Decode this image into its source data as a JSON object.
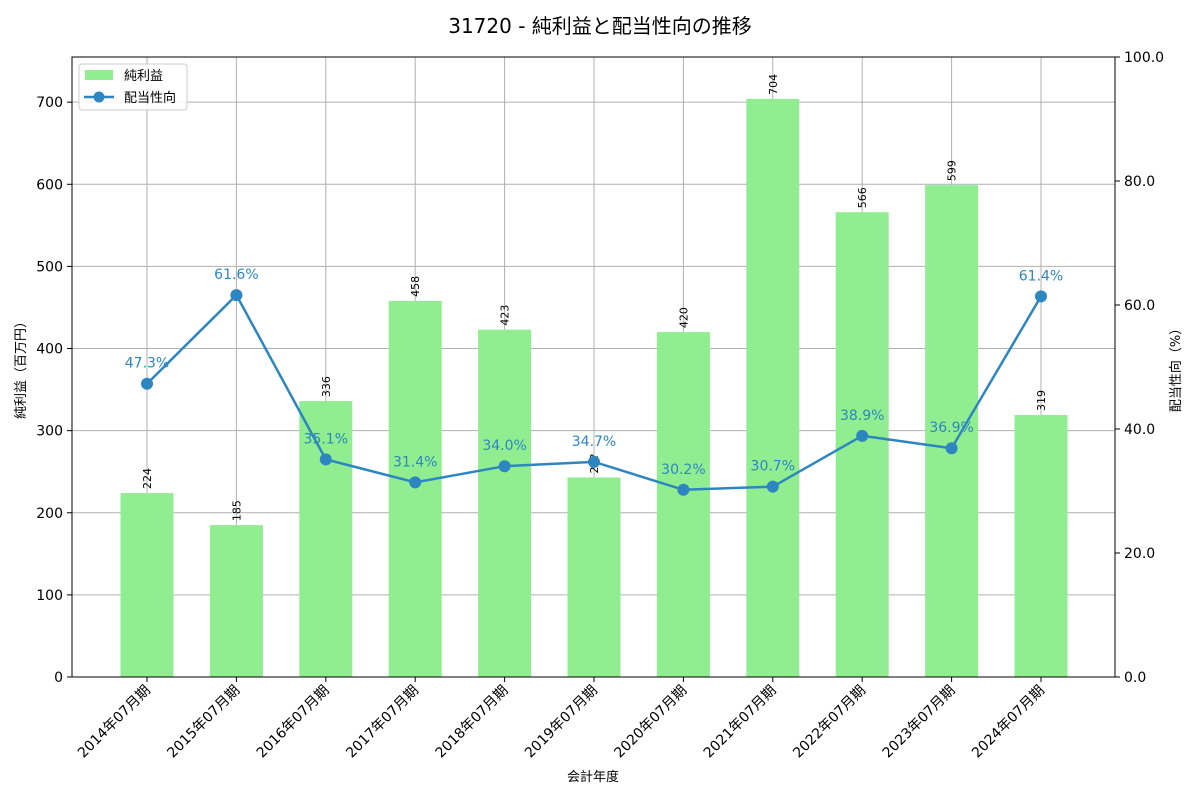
{
  "chart_data": {
    "type": "bar+line",
    "title": "31720 - 純利益と配当性向の推移",
    "xlabel": "会計年度",
    "ylabel_left": "純利益（百万円）",
    "ylabel_right": "配当性向（%）",
    "categories": [
      "2014年07月期",
      "2015年07月期",
      "2016年07月期",
      "2017年07月期",
      "2018年07月期",
      "2019年07月期",
      "2020年07月期",
      "2021年07月期",
      "2022年07月期",
      "2023年07月期",
      "2024年07月期"
    ],
    "series": [
      {
        "name": "純利益",
        "type": "bar",
        "axis": "left",
        "color": "#90ee90",
        "values": [
          224,
          185,
          336,
          458,
          423,
          243,
          420,
          704,
          566,
          599,
          319
        ],
        "labels": [
          "224",
          "185",
          "336",
          "458",
          "423",
          "24?",
          "420",
          "704",
          "566",
          "599",
          "319"
        ]
      },
      {
        "name": "配当性向",
        "type": "line",
        "axis": "right",
        "color": "#2e86c1",
        "values": [
          47.3,
          61.6,
          35.1,
          31.4,
          34.0,
          34.7,
          30.2,
          30.7,
          38.9,
          36.9,
          61.4
        ],
        "labels": [
          "47.3%",
          "61.6%",
          "35.1%",
          "31.4%",
          "34.0%",
          "34.7%",
          "30.2%",
          "30.7%",
          "38.9%",
          "36.9%",
          "61.4%"
        ]
      }
    ],
    "ylim_left": [
      0,
      755
    ],
    "yticks_left": [
      "0",
      "100",
      "200",
      "300",
      "400",
      "500",
      "600",
      "700"
    ],
    "ylim_right": [
      0,
      100
    ],
    "yticks_right": [
      "0.0",
      "20.0",
      "40.0",
      "60.0",
      "80.0",
      "100.0"
    ],
    "grid": true,
    "legend_position": "upper left",
    "legend": [
      "純利益",
      "配当性向"
    ]
  }
}
